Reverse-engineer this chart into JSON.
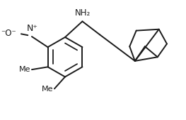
{
  "bg_color": "#ffffff",
  "line_color": "#1a1a1a",
  "line_width": 1.4,
  "font_size": 8.5,
  "figsize": [
    2.63,
    1.71
  ],
  "dpi": 100,
  "NH2": "NH₂",
  "Nplus": "N⁺",
  "Ominus": "⁻O⁻"
}
